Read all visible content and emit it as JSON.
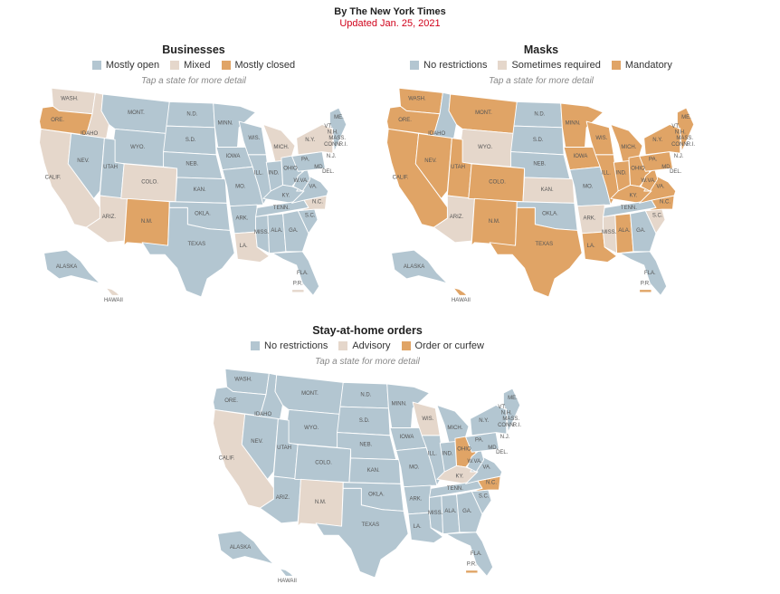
{
  "header": {
    "byline": "By The New York Times",
    "updated": "Updated Jan. 25, 2021"
  },
  "colors": {
    "blue": "#b3c6d1",
    "beige": "#e5d7cb",
    "orange": "#e0a466"
  },
  "panels": [
    {
      "key": "businesses",
      "title": "Businesses",
      "legend": [
        {
          "label": "Mostly open",
          "color": "#b3c6d1"
        },
        {
          "label": "Mixed",
          "color": "#e5d7cb"
        },
        {
          "label": "Mostly closed",
          "color": "#e0a466"
        }
      ],
      "hint": "Tap a state for more detail",
      "states": {
        "WA": "Mixed",
        "OR": "Mostly closed",
        "CA": "Mixed",
        "ID": "Mixed",
        "MT": "Mostly open",
        "WY": "Mostly open",
        "NV": "Mostly open",
        "UT": "Mostly open",
        "AZ": "Mixed",
        "CO": "Mixed",
        "NM": "Mostly closed",
        "ND": "Mostly open",
        "SD": "Mostly open",
        "NE": "Mostly open",
        "KS": "Mostly open",
        "OK": "Mostly open",
        "TX": "Mostly open",
        "MN": "Mostly open",
        "IA": "Mostly open",
        "MO": "Mostly open",
        "AR": "Mostly open",
        "LA": "Mixed",
        "WI": "Mostly open",
        "IL": "Mostly open",
        "MI": "Mixed",
        "IN": "Mostly open",
        "OH": "Mostly open",
        "KY": "Mostly open",
        "TN": "Mostly open",
        "MS": "Mostly open",
        "AL": "Mostly open",
        "GA": "Mostly open",
        "FL": "Mostly open",
        "SC": "Mostly open",
        "NC": "Mixed",
        "VA": "Mostly open",
        "WV": "Mostly open",
        "PA": "Mostly open",
        "NY": "Mixed",
        "NE_REGION": "Mostly open",
        "ME": "Mixed",
        "AK": "Mostly open",
        "HI": "Mixed",
        "PR": "Mixed"
      }
    },
    {
      "key": "masks",
      "title": "Masks",
      "legend": [
        {
          "label": "No restrictions",
          "color": "#b3c6d1"
        },
        {
          "label": "Sometimes required",
          "color": "#e5d7cb"
        },
        {
          "label": "Mandatory",
          "color": "#e0a466"
        }
      ],
      "hint": "Tap a state for more detail",
      "states": {
        "WA": "Mandatory",
        "OR": "Mandatory",
        "CA": "Mandatory",
        "ID": "No restrictions",
        "MT": "Mandatory",
        "WY": "Sometimes required",
        "NV": "Mandatory",
        "UT": "Mandatory",
        "AZ": "Sometimes required",
        "CO": "Mandatory",
        "NM": "Mandatory",
        "ND": "No restrictions",
        "SD": "No restrictions",
        "NE": "No restrictions",
        "KS": "Sometimes required",
        "OK": "No restrictions",
        "TX": "Mandatory",
        "MN": "Mandatory",
        "IA": "Mandatory",
        "MO": "No restrictions",
        "AR": "Sometimes required",
        "LA": "Mandatory",
        "WI": "Mandatory",
        "IL": "Mandatory",
        "MI": "Mandatory",
        "IN": "Mandatory",
        "OH": "Mandatory",
        "KY": "Mandatory",
        "TN": "No restrictions",
        "MS": "Sometimes required",
        "AL": "Mandatory",
        "GA": "No restrictions",
        "FL": "No restrictions",
        "SC": "Sometimes required",
        "NC": "Mandatory",
        "VA": "Mandatory",
        "WV": "Mandatory",
        "PA": "Mandatory",
        "NY": "Mandatory",
        "NE_REGION": "Mandatory",
        "ME": "Mandatory",
        "AK": "No restrictions",
        "HI": "Mandatory",
        "PR": "Mandatory"
      }
    },
    {
      "key": "stayhome",
      "title": "Stay-at-home orders",
      "legend": [
        {
          "label": "No restrictions",
          "color": "#b3c6d1"
        },
        {
          "label": "Advisory",
          "color": "#e5d7cb"
        },
        {
          "label": "Order or curfew",
          "color": "#e0a466"
        }
      ],
      "hint": "Tap a state for more detail",
      "states": {
        "WA": "No restrictions",
        "OR": "No restrictions",
        "CA": "Advisory",
        "ID": "No restrictions",
        "MT": "No restrictions",
        "WY": "No restrictions",
        "NV": "No restrictions",
        "UT": "No restrictions",
        "AZ": "No restrictions",
        "CO": "No restrictions",
        "NM": "Advisory",
        "ND": "No restrictions",
        "SD": "No restrictions",
        "NE": "No restrictions",
        "KS": "No restrictions",
        "OK": "No restrictions",
        "TX": "No restrictions",
        "MN": "No restrictions",
        "IA": "No restrictions",
        "MO": "No restrictions",
        "AR": "No restrictions",
        "LA": "No restrictions",
        "WI": "Advisory",
        "IL": "No restrictions",
        "MI": "No restrictions",
        "IN": "No restrictions",
        "OH": "Order or curfew",
        "KY": "Advisory",
        "TN": "No restrictions",
        "MS": "No restrictions",
        "AL": "No restrictions",
        "GA": "No restrictions",
        "FL": "No restrictions",
        "SC": "No restrictions",
        "NC": "Order or curfew",
        "VA": "No restrictions",
        "WV": "No restrictions",
        "PA": "No restrictions",
        "NY": "No restrictions",
        "NE_REGION": "No restrictions",
        "ME": "No restrictions",
        "AK": "No restrictions",
        "HI": "No restrictions",
        "PR": "Order or curfew"
      }
    }
  ],
  "labels": {
    "WA": "WASH.",
    "OR": "ORE.",
    "CA": "CALIF.",
    "ID": "IDAHO",
    "MT": "MONT.",
    "WY": "WYO.",
    "NV": "NEV.",
    "UT": "UTAH",
    "AZ": "ARIZ.",
    "CO": "COLO.",
    "NM": "N.M.",
    "ND": "N.D.",
    "SD": "S.D.",
    "NE": "NEB.",
    "KS": "KAN.",
    "OK": "OKLA.",
    "TX": "TEXAS",
    "MN": "MINN.",
    "IA": "IOWA",
    "MO": "MO.",
    "AR": "ARK.",
    "LA": "LA.",
    "WI": "WIS.",
    "IL": "ILL.",
    "MI": "MICH.",
    "IN": "IND.",
    "OH": "OHIO",
    "KY": "KY.",
    "TN": "TENN.",
    "MS": "MISS.",
    "AL": "ALA.",
    "GA": "GA.",
    "FL": "FLA.",
    "SC": "S.C.",
    "NC": "N.C.",
    "VA": "VA.",
    "WV": "W.VA.",
    "PA": "PA.",
    "NY": "N.Y.",
    "ME": "ME.",
    "VT": "VT.",
    "NH": "N.H.",
    "MA": "MASS.",
    "CT": "CONN.",
    "RI": "R.I.",
    "NJ": "N.J.",
    "DE": "DEL.",
    "MD": "MD.",
    "AK": "ALASKA",
    "HI": "HAWAII",
    "PR": "P.R."
  }
}
